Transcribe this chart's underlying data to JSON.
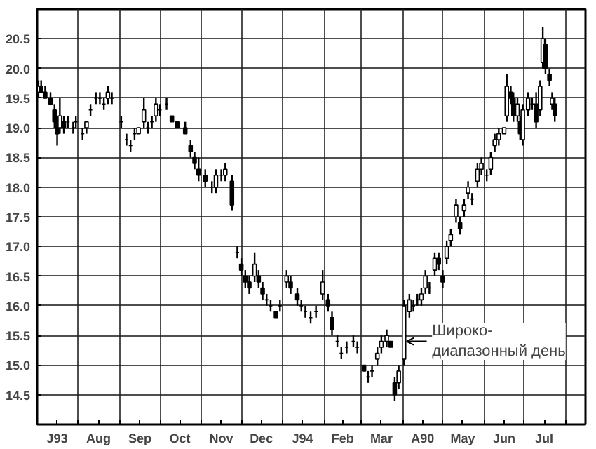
{
  "chart_data": {
    "type": "candlestick",
    "color": "#000000",
    "grid": true,
    "x": [
      "1993-07-02",
      "1993-07-04",
      "1993-07-07",
      "1993-07-11",
      "1993-07-14",
      "1993-07-16",
      "1993-07-18",
      "1993-07-21",
      "1993-07-24",
      "1993-07-28",
      "1993-07-30",
      "1993-08-04",
      "1993-08-07",
      "1993-08-10",
      "1993-08-14",
      "1993-08-17",
      "1993-08-20",
      "1993-08-23",
      "1993-08-26",
      "1993-09-02",
      "1993-09-06",
      "1993-09-09",
      "1993-09-12",
      "1993-09-15",
      "1993-09-19",
      "1993-09-22",
      "1993-09-25",
      "1993-09-28",
      "1993-10-01",
      "1993-10-06",
      "1993-10-10",
      "1993-10-14",
      "1993-10-20",
      "1993-10-24",
      "1993-10-27",
      "1993-10-30",
      "1993-11-04",
      "1993-11-09",
      "1993-11-12",
      "1993-11-16",
      "1993-11-19",
      "1993-11-24",
      "1993-11-28",
      "1993-12-01",
      "1993-12-04",
      "1993-12-07",
      "1993-12-11",
      "1993-12-14",
      "1993-12-17",
      "1993-12-20",
      "1993-12-23",
      "1993-12-27",
      "1993-12-30",
      "1994-01-04",
      "1994-01-07",
      "1994-01-12",
      "1994-01-15",
      "1994-01-18",
      "1994-01-22",
      "1994-01-26",
      "1994-01-31",
      "1994-02-04",
      "1994-02-07",
      "1994-02-11",
      "1994-02-14",
      "1994-02-18",
      "1994-02-23",
      "1994-02-26",
      "1994-03-03",
      "1994-03-06",
      "1994-03-09",
      "1994-03-13",
      "1994-03-16",
      "1994-03-20",
      "1994-03-23",
      "1994-03-26",
      "1994-03-29",
      "1994-04-02",
      "1994-04-06",
      "1994-04-09",
      "1994-04-12",
      "1994-04-15",
      "1994-04-18",
      "1994-04-21",
      "1994-04-25",
      "1994-04-28",
      "1994-05-01",
      "1994-05-04",
      "1994-05-07",
      "1994-05-11",
      "1994-05-14",
      "1994-05-17",
      "1994-05-20",
      "1994-05-23",
      "1994-05-27",
      "1994-05-30",
      "1994-06-03",
      "1994-06-06",
      "1994-06-09",
      "1994-06-12",
      "1994-06-16",
      "1994-06-18",
      "1994-06-21",
      "1994-06-23",
      "1994-06-26",
      "1994-06-28",
      "1994-06-30",
      "1994-07-04",
      "1994-07-07",
      "1994-07-10",
      "1994-07-13",
      "1994-07-15",
      "1994-07-17",
      "1994-07-20",
      "1994-07-22",
      "1994-07-24"
    ],
    "ohlc": [
      [
        19.6,
        19.8,
        19.5,
        19.7
      ],
      [
        19.7,
        19.8,
        19.6,
        19.6
      ],
      [
        19.6,
        19.7,
        19.5,
        19.5
      ],
      [
        19.5,
        19.6,
        19.4,
        19.4
      ],
      [
        19.3,
        19.4,
        19.0,
        19.1
      ],
      [
        19.1,
        19.2,
        18.7,
        18.9
      ],
      [
        19.0,
        19.5,
        18.9,
        19.2
      ],
      [
        19.1,
        19.2,
        18.9,
        19.0
      ],
      [
        19.1,
        19.2,
        19.0,
        19.1
      ],
      [
        19.0,
        19.1,
        18.9,
        19.0
      ],
      [
        19.1,
        19.2,
        19.0,
        19.1
      ],
      [
        18.9,
        19.0,
        18.8,
        18.9
      ],
      [
        19.0,
        19.1,
        18.9,
        19.1
      ],
      [
        19.3,
        19.4,
        19.2,
        19.3
      ],
      [
        19.5,
        19.6,
        19.4,
        19.5
      ],
      [
        19.5,
        19.6,
        19.4,
        19.5
      ],
      [
        19.4,
        19.5,
        19.3,
        19.4
      ],
      [
        19.5,
        19.7,
        19.4,
        19.6
      ],
      [
        19.5,
        19.6,
        19.4,
        19.5
      ],
      [
        19.1,
        19.2,
        19.0,
        19.1
      ],
      [
        18.8,
        18.9,
        18.7,
        18.8
      ],
      [
        18.7,
        18.8,
        18.6,
        18.7
      ],
      [
        18.9,
        19.0,
        18.8,
        18.9
      ],
      [
        18.9,
        19.0,
        18.9,
        19.0
      ],
      [
        19.1,
        19.5,
        19.0,
        19.3
      ],
      [
        19.0,
        19.1,
        18.9,
        19.0
      ],
      [
        19.1,
        19.2,
        19.0,
        19.1
      ],
      [
        19.2,
        19.5,
        19.1,
        19.4
      ],
      [
        19.3,
        19.4,
        19.2,
        19.3
      ],
      [
        19.4,
        19.5,
        19.3,
        19.4
      ],
      [
        19.2,
        19.2,
        19.1,
        19.1
      ],
      [
        19.1,
        19.1,
        19.0,
        19.0
      ],
      [
        19.0,
        19.1,
        18.9,
        18.9
      ],
      [
        18.7,
        18.8,
        18.5,
        18.6
      ],
      [
        18.5,
        18.6,
        18.3,
        18.4
      ],
      [
        18.3,
        18.5,
        18.1,
        18.2
      ],
      [
        18.2,
        18.3,
        18.0,
        18.1
      ],
      [
        18.0,
        18.1,
        17.9,
        18.0
      ],
      [
        18.0,
        18.3,
        17.9,
        18.2
      ],
      [
        18.2,
        18.3,
        18.1,
        18.2
      ],
      [
        18.2,
        18.4,
        18.1,
        18.3
      ],
      [
        18.1,
        18.2,
        17.6,
        17.7
      ],
      [
        16.9,
        17.0,
        16.8,
        16.9
      ],
      [
        16.7,
        16.8,
        16.5,
        16.6
      ],
      [
        16.5,
        16.6,
        16.3,
        16.4
      ],
      [
        16.4,
        16.5,
        16.2,
        16.3
      ],
      [
        16.5,
        16.9,
        16.4,
        16.7
      ],
      [
        16.5,
        16.6,
        16.3,
        16.4
      ],
      [
        16.3,
        16.4,
        16.1,
        16.2
      ],
      [
        16.1,
        16.2,
        16.0,
        16.1
      ],
      [
        16.0,
        16.1,
        15.9,
        16.0
      ],
      [
        15.9,
        15.9,
        15.8,
        15.8
      ],
      [
        16.0,
        16.1,
        15.9,
        16.0
      ],
      [
        16.4,
        16.6,
        16.3,
        16.5
      ],
      [
        16.4,
        16.5,
        16.2,
        16.3
      ],
      [
        16.2,
        16.3,
        16.0,
        16.1
      ],
      [
        16.0,
        16.1,
        15.9,
        16.0
      ],
      [
        15.9,
        16.0,
        15.8,
        15.9
      ],
      [
        15.8,
        15.9,
        15.7,
        15.8
      ],
      [
        15.9,
        16.0,
        15.8,
        15.9
      ],
      [
        16.2,
        16.6,
        16.1,
        16.4
      ],
      [
        16.1,
        16.2,
        15.9,
        16.0
      ],
      [
        15.8,
        15.9,
        15.5,
        15.6
      ],
      [
        15.4,
        15.5,
        15.3,
        15.4
      ],
      [
        15.2,
        15.3,
        15.1,
        15.2
      ],
      [
        15.3,
        15.4,
        15.2,
        15.3
      ],
      [
        15.4,
        15.5,
        15.3,
        15.4
      ],
      [
        15.3,
        15.4,
        15.2,
        15.3
      ],
      [
        15.0,
        15.0,
        14.9,
        14.9
      ],
      [
        14.8,
        14.9,
        14.7,
        14.8
      ],
      [
        14.9,
        15.0,
        14.8,
        14.9
      ],
      [
        15.1,
        15.3,
        15.0,
        15.2
      ],
      [
        15.3,
        15.5,
        15.2,
        15.4
      ],
      [
        15.4,
        15.6,
        15.3,
        15.5
      ],
      [
        15.4,
        15.4,
        15.3,
        15.3
      ],
      [
        14.7,
        14.8,
        14.4,
        14.5
      ],
      [
        14.7,
        15.0,
        14.6,
        14.9
      ],
      [
        15.1,
        16.1,
        15.0,
        16.0
      ],
      [
        15.9,
        16.2,
        15.8,
        16.1
      ],
      [
        16.0,
        16.1,
        15.9,
        16.0
      ],
      [
        16.1,
        16.2,
        16.0,
        16.1
      ],
      [
        16.1,
        16.3,
        16.0,
        16.2
      ],
      [
        16.3,
        16.6,
        16.2,
        16.5
      ],
      [
        16.3,
        16.4,
        16.2,
        16.3
      ],
      [
        16.6,
        16.9,
        16.5,
        16.8
      ],
      [
        16.8,
        16.9,
        16.6,
        16.7
      ],
      [
        16.5,
        16.6,
        16.3,
        16.4
      ],
      [
        16.8,
        17.1,
        16.7,
        17.0
      ],
      [
        17.1,
        17.3,
        17.0,
        17.2
      ],
      [
        17.5,
        17.8,
        17.4,
        17.7
      ],
      [
        17.4,
        17.5,
        17.2,
        17.3
      ],
      [
        17.6,
        17.8,
        17.5,
        17.7
      ],
      [
        17.9,
        18.1,
        17.8,
        18.0
      ],
      [
        17.8,
        17.9,
        17.7,
        17.8
      ],
      [
        18.1,
        18.4,
        18.0,
        18.3
      ],
      [
        18.3,
        18.5,
        18.2,
        18.4
      ],
      [
        18.2,
        18.3,
        18.1,
        18.2
      ],
      [
        18.3,
        18.6,
        18.2,
        18.5
      ],
      [
        18.7,
        18.9,
        18.6,
        18.8
      ],
      [
        18.8,
        19.0,
        18.7,
        18.9
      ],
      [
        18.9,
        19.0,
        18.9,
        19.0
      ],
      [
        19.2,
        19.9,
        19.1,
        19.7
      ],
      [
        19.6,
        19.7,
        19.4,
        19.5
      ],
      [
        19.5,
        19.6,
        19.1,
        19.2
      ],
      [
        19.2,
        19.5,
        19.1,
        19.4
      ],
      [
        19.1,
        19.2,
        18.8,
        18.9
      ],
      [
        18.8,
        19.4,
        18.7,
        19.3
      ],
      [
        19.3,
        19.6,
        19.2,
        19.5
      ],
      [
        19.4,
        19.5,
        19.3,
        19.4
      ],
      [
        19.4,
        19.6,
        19.0,
        19.1
      ],
      [
        19.3,
        19.8,
        19.2,
        19.7
      ],
      [
        20.1,
        20.7,
        20.0,
        20.5
      ],
      [
        20.4,
        20.5,
        19.9,
        20.0
      ],
      [
        19.9,
        20.0,
        19.7,
        19.8
      ],
      [
        19.4,
        19.6,
        19.3,
        19.5
      ],
      [
        19.4,
        19.5,
        19.1,
        19.2
      ]
    ],
    "xlim": [
      "1993-07-01",
      "1994-08-16"
    ],
    "xticks": [
      {
        "value": "1993-07-01",
        "label": null
      },
      {
        "value": "1993-07-16",
        "label": "J93"
      },
      {
        "value": "1993-08-01",
        "label": null
      },
      {
        "value": "1993-08-16",
        "label": "Aug"
      },
      {
        "value": "1993-09-01",
        "label": null
      },
      {
        "value": "1993-09-16",
        "label": "Sep"
      },
      {
        "value": "1993-10-01",
        "label": null
      },
      {
        "value": "1993-10-16",
        "label": "Oct"
      },
      {
        "value": "1993-11-01",
        "label": null
      },
      {
        "value": "1993-11-16",
        "label": "Nov"
      },
      {
        "value": "1993-12-01",
        "label": null
      },
      {
        "value": "1993-12-16",
        "label": "Dec"
      },
      {
        "value": "1994-01-01",
        "label": null
      },
      {
        "value": "1994-01-16",
        "label": "J94"
      },
      {
        "value": "1994-02-01",
        "label": null
      },
      {
        "value": "1994-02-15",
        "label": "Feb"
      },
      {
        "value": "1994-03-01",
        "label": null
      },
      {
        "value": "1994-03-16",
        "label": "Mar"
      },
      {
        "value": "1994-04-01",
        "label": null
      },
      {
        "value": "1994-04-16",
        "label": "A90"
      },
      {
        "value": "1994-05-01",
        "label": null
      },
      {
        "value": "1994-05-16",
        "label": "May"
      },
      {
        "value": "1994-06-01",
        "label": null
      },
      {
        "value": "1994-06-16",
        "label": "Jun"
      },
      {
        "value": "1994-07-01",
        "label": null
      },
      {
        "value": "1994-07-16",
        "label": "Jul"
      },
      {
        "value": "1994-08-01",
        "label": null
      }
    ],
    "ylim": [
      14.0,
      21.0
    ],
    "yticks": [
      {
        "value": 14.5,
        "label": "14.5"
      },
      {
        "value": 15.0,
        "label": "15.0"
      },
      {
        "value": 15.5,
        "label": "15.5"
      },
      {
        "value": 16.0,
        "label": "16.0"
      },
      {
        "value": 16.5,
        "label": "16.5"
      },
      {
        "value": 17.0,
        "label": "17.0"
      },
      {
        "value": 17.5,
        "label": "17.5"
      },
      {
        "value": 18.0,
        "label": "18.0"
      },
      {
        "value": 18.5,
        "label": "18.5"
      },
      {
        "value": 19.0,
        "label": "19.0"
      },
      {
        "value": 19.5,
        "label": "19.5"
      },
      {
        "value": 20.0,
        "label": "20.0"
      },
      {
        "value": 20.5,
        "label": "20.5"
      }
    ],
    "annotations": [
      {
        "text": "Широко-\nдиапазонный день",
        "x": "1994-04-02",
        "y": 15.4
      }
    ]
  }
}
